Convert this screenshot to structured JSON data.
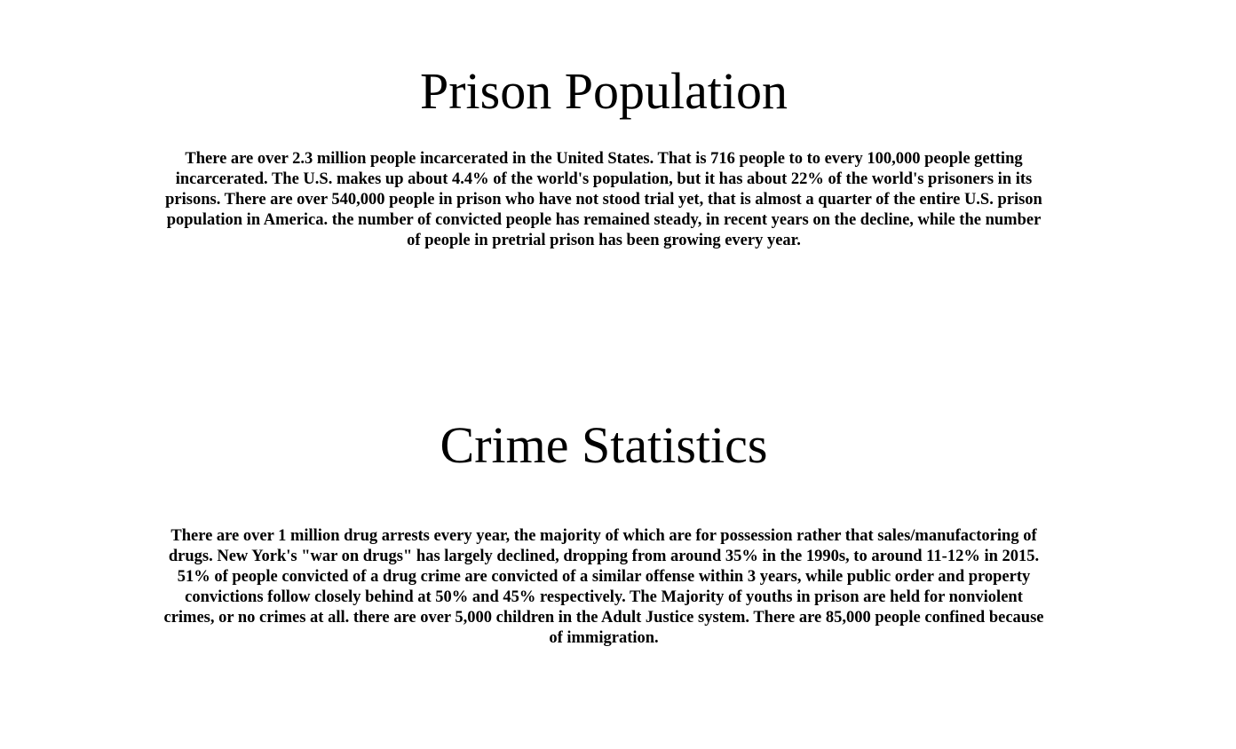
{
  "sections": [
    {
      "title": "Prison Population",
      "body": "There are over 2.3 million people incarcerated in the United States. That is 716 people to to every 100,000 people getting incarcerated. The U.S. makes up about 4.4% of the world's population, but it has about 22% of the world's prisoners in its prisons. There are over 540,000 people in prison who have not stood trial yet, that is almost a quarter of the entire U.S. prison population in America. the number of convicted people has remained steady, in recent years on the decline, while the number of people in pretrial prison has been growing every year."
    },
    {
      "title": "Crime Statistics",
      "body": "There are over 1 million drug arrests every year, the majority of which are for possession rather that sales/manufactoring of drugs. New York's \"war on drugs\" has largely declined, dropping from around 35% in the 1990s, to around 11-12% in 2015. 51% of people convicted of a drug crime are convicted of a similar offense within 3 years, while public order and property convictions follow closely behind at 50% and 45% respectively. The Majority of youths in prison are held for nonviolent crimes, or no crimes at all. there are over 5,000 children in the Adult Justice system. There are 85,000 people confined because of immigration."
    }
  ]
}
